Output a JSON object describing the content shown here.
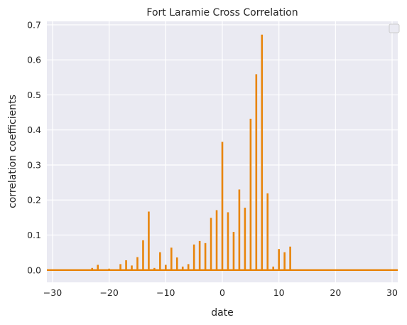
{
  "chart_data": {
    "type": "bar",
    "title": "Fort Laramie Cross Correlation",
    "xlabel": "date",
    "ylabel": "correlation coefficients",
    "xlim": [
      -31,
      31
    ],
    "ylim": [
      -0.035,
      0.71
    ],
    "xticks": [
      -30,
      -20,
      -10,
      0,
      10,
      20,
      30
    ],
    "yticks": [
      0.0,
      0.1,
      0.2,
      0.3,
      0.4,
      0.5,
      0.6,
      0.7
    ],
    "xtick_labels": [
      "−30",
      "−20",
      "−10",
      "0",
      "10",
      "20",
      "30"
    ],
    "ytick_labels": [
      "0.0",
      "0.1",
      "0.2",
      "0.3",
      "0.4",
      "0.5",
      "0.6",
      "0.7"
    ],
    "grid": true,
    "legend": "top-right, empty",
    "color": "#e8850c",
    "background": "#eaeaf2",
    "x": [
      -30,
      -29,
      -28,
      -27,
      -26,
      -25,
      -24,
      -23,
      -22,
      -21,
      -20,
      -19,
      -18,
      -17,
      -16,
      -15,
      -14,
      -13,
      -12,
      -11,
      -10,
      -9,
      -8,
      -7,
      -6,
      -5,
      -4,
      -3,
      -2,
      -1,
      0,
      1,
      2,
      3,
      4,
      5,
      6,
      7,
      8,
      9,
      10,
      11,
      12,
      13,
      14,
      15,
      16,
      17,
      18,
      19,
      20,
      21,
      22,
      23,
      24,
      25,
      26,
      27,
      28,
      29,
      30
    ],
    "values": [
      0,
      0,
      0,
      0,
      0,
      0,
      0,
      0.006,
      0.015,
      0,
      0.004,
      0,
      0.017,
      0.028,
      0.013,
      0.037,
      0.085,
      0.167,
      0.006,
      0.051,
      0.015,
      0.064,
      0.036,
      0.01,
      0.017,
      0.073,
      0.083,
      0.077,
      0.149,
      0.171,
      0.366,
      0.165,
      0.109,
      0.23,
      0.178,
      0.432,
      0.559,
      0.672,
      0.219,
      0.01,
      0.06,
      0.051,
      0.067,
      0,
      0,
      0,
      0,
      0,
      0,
      0,
      0,
      0,
      0,
      0,
      0,
      0,
      0,
      0,
      0,
      0,
      0
    ]
  }
}
